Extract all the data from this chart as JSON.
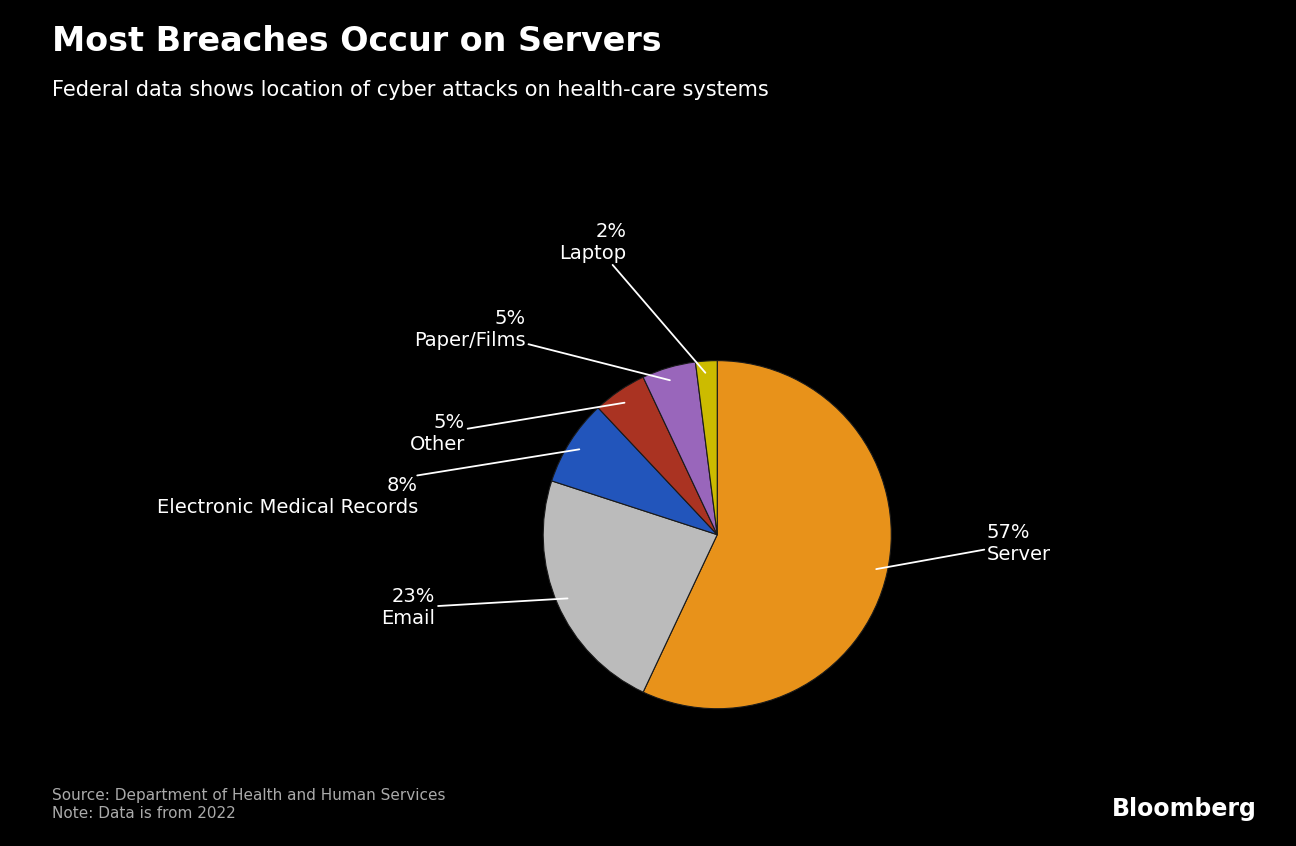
{
  "title": "Most Breaches Occur on Servers",
  "subtitle": "Federal data shows location of cyber attacks on health-care systems",
  "slices": [
    {
      "label": "Server",
      "pct": 57,
      "color": "#E8921A"
    },
    {
      "label": "Email",
      "pct": 23,
      "color": "#BBBBBB"
    },
    {
      "label": "Electronic Medical Records",
      "pct": 8,
      "color": "#2255BB"
    },
    {
      "label": "Other",
      "pct": 5,
      "color": "#AA3322"
    },
    {
      "label": "Paper/Films",
      "pct": 5,
      "color": "#9966BB"
    },
    {
      "label": "Laptop",
      "pct": 2,
      "color": "#CCBB00"
    }
  ],
  "source_text": "Source: Department of Health and Human Services\nNote: Data is from 2022",
  "bloomberg_text": "Bloomberg",
  "bg_color": "#000000",
  "text_color": "#ffffff",
  "title_fontsize": 24,
  "subtitle_fontsize": 15,
  "label_fontsize": 14,
  "source_fontsize": 11,
  "bloomberg_fontsize": 17
}
